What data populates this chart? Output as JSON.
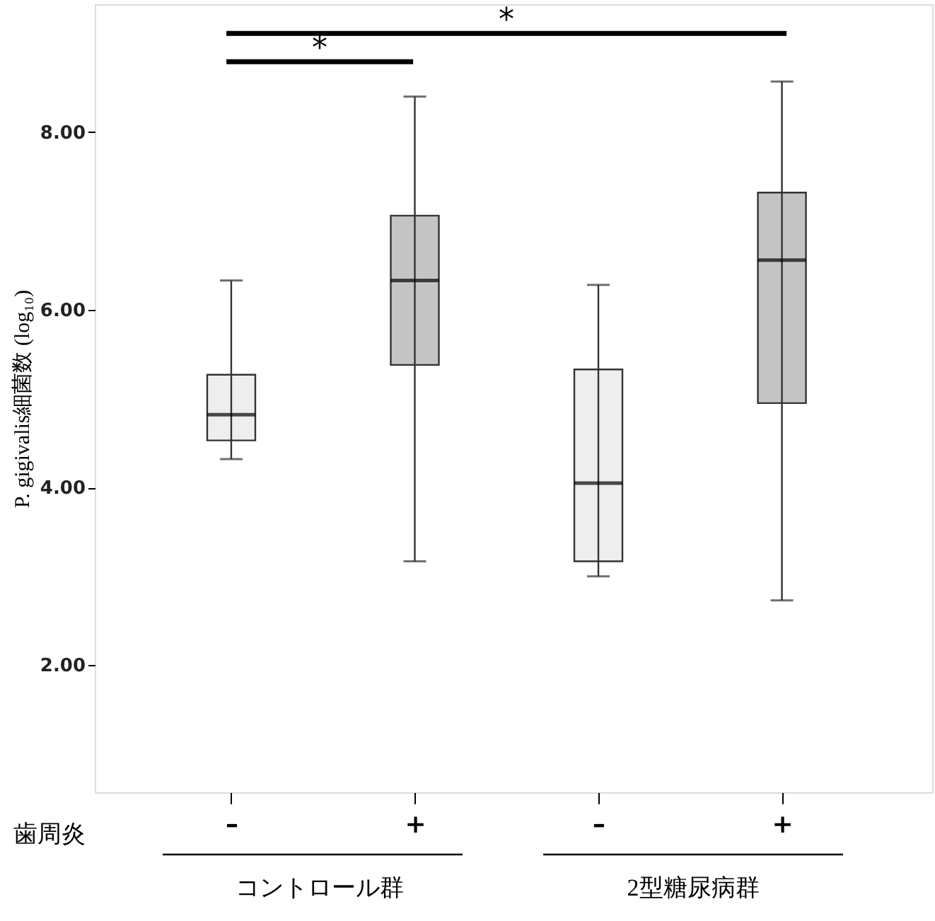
{
  "chart_data": {
    "type": "box",
    "ylabel": "P. gigivalis細菌数 (log₁₀)",
    "xlabel": "歯周炎",
    "categories": [
      "–",
      "+",
      "–",
      "+"
    ],
    "boxes": [
      {
        "low": 4.32,
        "q1": 4.53,
        "median": 4.82,
        "q3": 5.27,
        "high": 6.33
      },
      {
        "low": 3.17,
        "q1": 5.38,
        "median": 6.33,
        "q3": 7.06,
        "high": 8.4
      },
      {
        "low": 3.0,
        "q1": 3.17,
        "median": 4.05,
        "q3": 5.33,
        "high": 6.28
      },
      {
        "low": 2.73,
        "q1": 4.95,
        "median": 6.56,
        "q3": 7.32,
        "high": 8.57
      }
    ],
    "colors": [
      "#eeeeee",
      "#c4c4c4",
      "#eeeeee",
      "#c4c4c4"
    ],
    "ylim": [
      0.57,
      9.44
    ],
    "yticks": [
      {
        "value": 2,
        "label": "2.00"
      },
      {
        "value": 4,
        "label": "4.00"
      },
      {
        "value": 6,
        "label": "6.00"
      },
      {
        "value": 8,
        "label": "8.00"
      }
    ],
    "grid": false,
    "annotations": [
      "*",
      "*",
      "コントロール群",
      "2型糖尿病群"
    ]
  }
}
